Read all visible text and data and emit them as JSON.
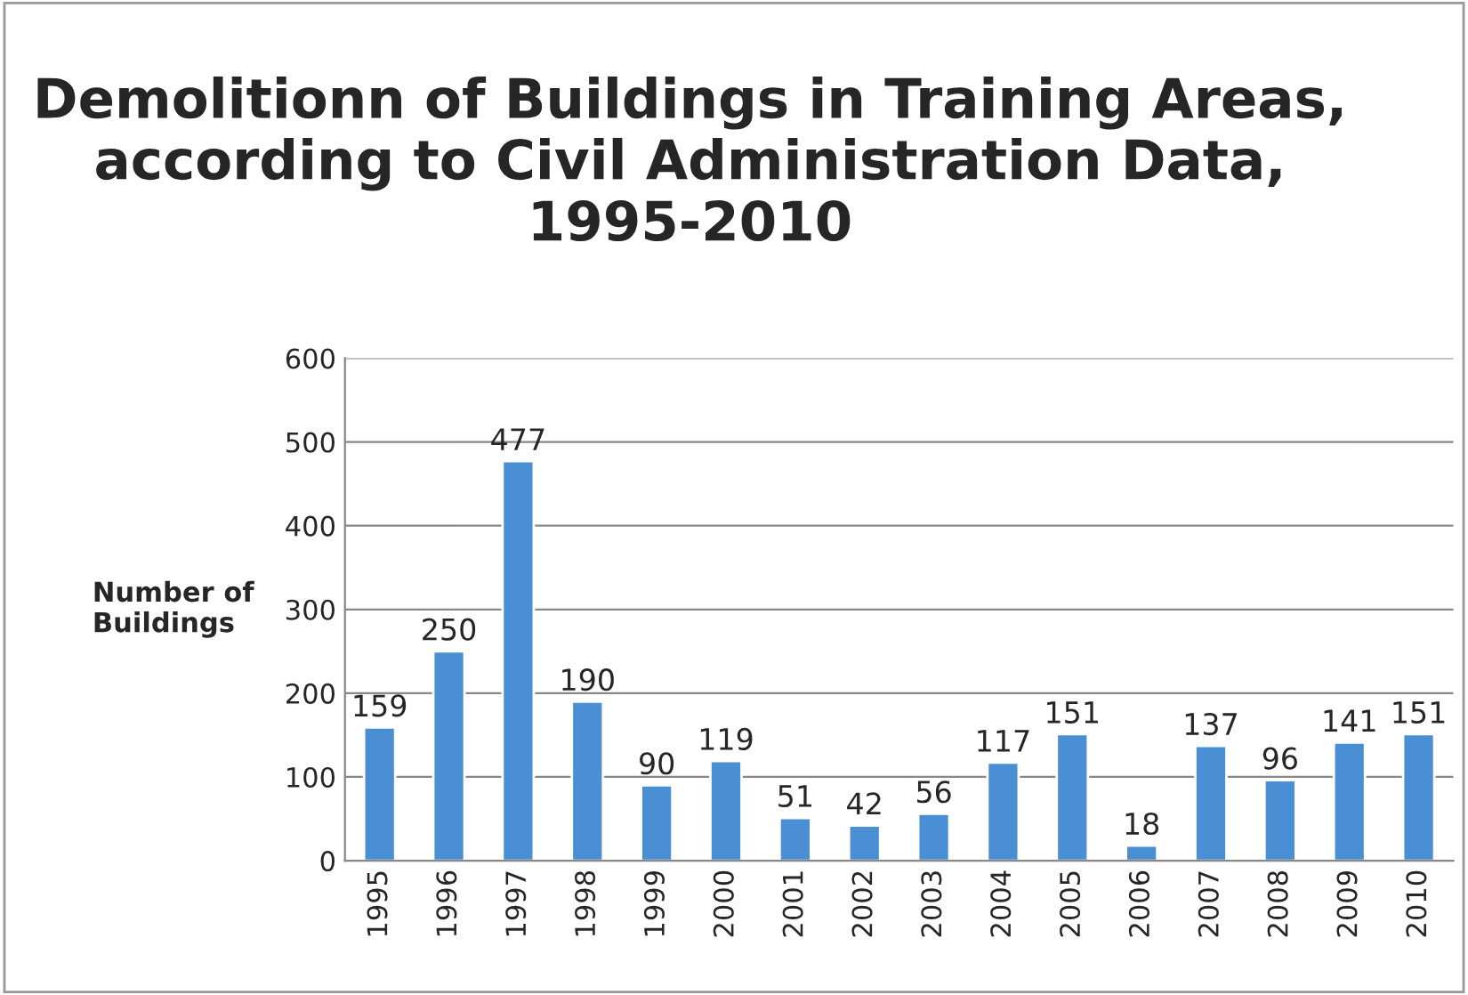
{
  "chart_data": {
    "type": "bar",
    "title": "Demolitionn of Buildings in Training Areas, according to Civil Administration Data, 1995-2010",
    "ylabel": "Number of Buildings",
    "categories": [
      "1995",
      "1996",
      "1997",
      "1998",
      "1999",
      "2000",
      "2001",
      "2002",
      "2003",
      "2004",
      "2005",
      "2006",
      "2007",
      "2008",
      "2009",
      "2010"
    ],
    "values": [
      159,
      250,
      477,
      190,
      90,
      119,
      51,
      42,
      56,
      117,
      151,
      18,
      137,
      96,
      141,
      151
    ],
    "color": "#4a8ed4",
    "ylim": [
      0,
      600
    ],
    "yticks": [
      0,
      100,
      200,
      300,
      400,
      500,
      600
    ],
    "grid": "y",
    "data_labels": true
  }
}
